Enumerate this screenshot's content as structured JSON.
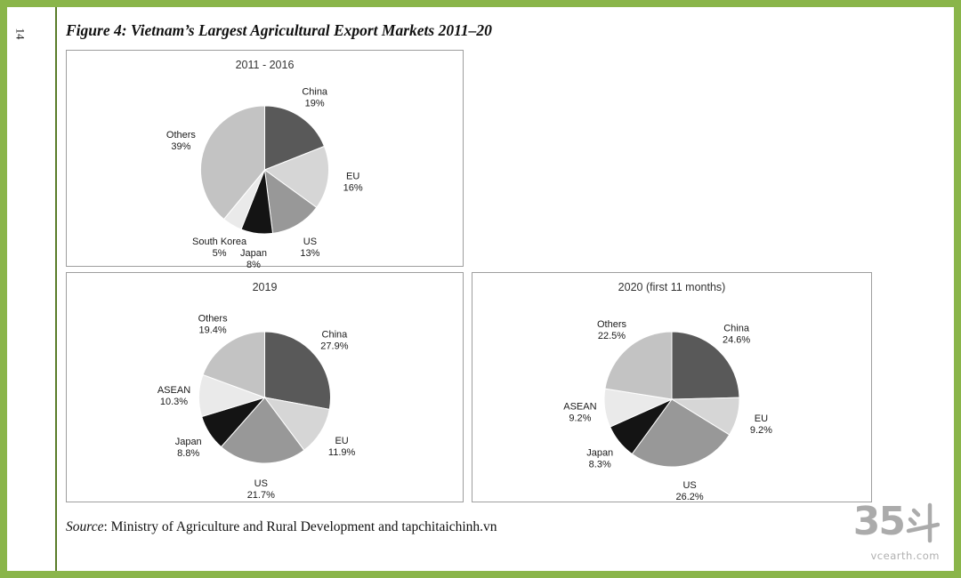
{
  "page": {
    "number": "14",
    "figure_title": "Figure 4: Vietnam’s Largest Agricultural Export Markets 2011–20",
    "source_label": "Source",
    "source_text": ": Ministry of Agriculture and Rural Development and tapchitaichinh.vn",
    "watermark": {
      "number": "35",
      "character": "斗",
      "site": "vcearth.com"
    }
  },
  "chart_data": [
    {
      "type": "pie",
      "title": "2011 - 2016",
      "start_angle_deg": 0,
      "direction": "clockwise",
      "labels": [
        "China",
        "EU",
        "US",
        "Japan",
        "South Korea",
        "Others"
      ],
      "values": [
        19,
        16,
        13,
        8,
        5,
        39
      ],
      "value_labels": [
        "19%",
        "16%",
        "13%",
        "8%",
        "5%",
        "39%"
      ],
      "colors": [
        "#595959",
        "#d6d6d6",
        "#989898",
        "#141414",
        "#eaeaea",
        "#c3c3c3"
      ]
    },
    {
      "type": "pie",
      "title": "2019",
      "start_angle_deg": 0,
      "direction": "clockwise",
      "labels": [
        "China",
        "EU",
        "US",
        "Japan",
        "ASEAN",
        "Others"
      ],
      "values": [
        27.9,
        11.9,
        21.7,
        8.8,
        10.3,
        19.4
      ],
      "value_labels": [
        "27.9%",
        "11.9%",
        "21.7%",
        "8.8%",
        "10.3%",
        "19.4%"
      ],
      "colors": [
        "#595959",
        "#d6d6d6",
        "#989898",
        "#141414",
        "#eaeaea",
        "#c3c3c3"
      ]
    },
    {
      "type": "pie",
      "title": "2020 (first 11 months)",
      "start_angle_deg": 0,
      "direction": "clockwise",
      "labels": [
        "China",
        "EU",
        "US",
        "Japan",
        "ASEAN",
        "Others"
      ],
      "values": [
        24.6,
        9.2,
        26.2,
        8.3,
        9.2,
        22.5
      ],
      "value_labels": [
        "24.6%",
        "9.2%",
        "26.2%",
        "8.3%",
        "9.2%",
        "22.5%"
      ],
      "colors": [
        "#595959",
        "#d6d6d6",
        "#989898",
        "#141414",
        "#eaeaea",
        "#c3c3c3"
      ]
    }
  ]
}
